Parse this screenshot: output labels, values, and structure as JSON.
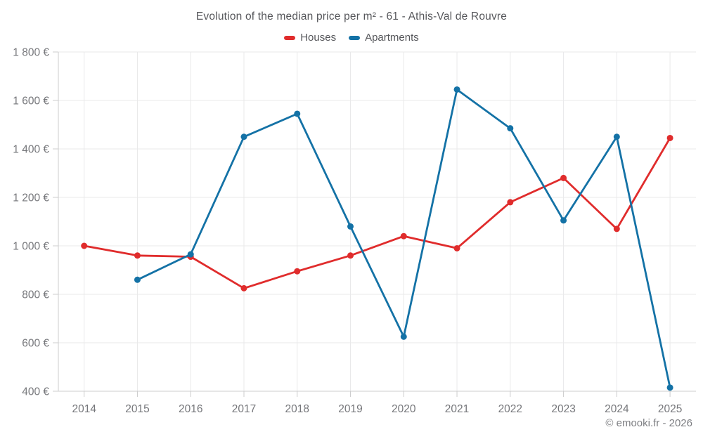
{
  "title": "Evolution of the median price per m² - 61 - Athis-Val de Rouvre",
  "legend": {
    "items": [
      {
        "label": "Houses",
        "color": "#e02c2c"
      },
      {
        "label": "Apartments",
        "color": "#1472a6"
      }
    ]
  },
  "attribution": "© emooki.fr - 2026",
  "colors": {
    "houses": "#e02c2c",
    "apartments": "#1472a6",
    "grid": "#e9e9ea",
    "axis": "#cccccd",
    "tick_label": "#76777b",
    "title_text": "#56575b"
  },
  "chart_data": {
    "type": "line",
    "title": "Evolution of the median price per m² - 61 - Athis-Val de Rouvre",
    "x": [
      2014,
      2015,
      2016,
      2017,
      2018,
      2019,
      2020,
      2021,
      2022,
      2023,
      2024,
      2025
    ],
    "x_labels": [
      "2014",
      "2015",
      "2016",
      "2017",
      "2018",
      "2019",
      "2020",
      "2021",
      "2022",
      "2023",
      "2024",
      "2025"
    ],
    "series": [
      {
        "name": "Houses",
        "color": "#e02c2c",
        "values": [
          1000,
          960,
          955,
          825,
          895,
          960,
          1040,
          990,
          1180,
          1280,
          1070,
          1445
        ]
      },
      {
        "name": "Apartments",
        "color": "#1472a6",
        "values": [
          null,
          860,
          965,
          1450,
          1545,
          1080,
          625,
          1645,
          1485,
          1105,
          1450,
          415
        ]
      }
    ],
    "xlabel": "",
    "ylabel": "",
    "ylim": [
      400,
      1800
    ],
    "yticks": [
      400,
      600,
      800,
      1000,
      1200,
      1400,
      1600,
      1800
    ],
    "ytick_labels": [
      "400 €",
      "600 €",
      "800 €",
      "1 000 €",
      "1 200 €",
      "1 400 €",
      "1 600 €",
      "1 800 €"
    ],
    "grid": true,
    "legend_position": "top"
  }
}
